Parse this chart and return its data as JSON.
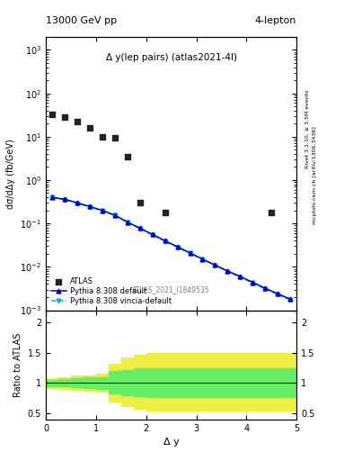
{
  "title_left": "13000 GeV pp",
  "title_right": "4-lepton",
  "annotation": "Δ y(lep pairs) (atlas2021-4l)",
  "watermark": "ATLAS_2021_I1849535",
  "right_label1": "Rivet 3.1.10, ≥ 3.5M events",
  "right_label2": "mcplots.cern.ch [arXiv:1306.3436]",
  "ylabel_main": "dσ/dΔy (fb/GeV)",
  "ylabel_ratio": "Ratio to ATLAS",
  "xlabel": "Δ y",
  "xlim": [
    0,
    5.0
  ],
  "ylim_main": [
    0.001,
    2000.0
  ],
  "ylim_ratio": [
    0.4,
    2.2
  ],
  "atlas_x": [
    0.125,
    0.375,
    0.625,
    0.875,
    1.125,
    1.375,
    1.625,
    1.875,
    2.375,
    4.5
  ],
  "atlas_y": [
    32,
    28,
    22,
    16,
    10,
    9.5,
    3.5,
    0.3,
    0.18,
    0.18
  ],
  "mc1_x": [
    0.125,
    0.375,
    0.625,
    0.875,
    1.125,
    1.375,
    1.625,
    1.875,
    2.125,
    2.375,
    2.625,
    2.875,
    3.125,
    3.375,
    3.625,
    3.875,
    4.125,
    4.375,
    4.625,
    4.875
  ],
  "mc1_y": [
    0.4,
    0.36,
    0.3,
    0.245,
    0.2,
    0.155,
    0.108,
    0.078,
    0.056,
    0.04,
    0.029,
    0.021,
    0.015,
    0.011,
    0.008,
    0.006,
    0.0044,
    0.0032,
    0.0024,
    0.0018
  ],
  "mc2_x": [
    0.125,
    0.375,
    0.625,
    0.875,
    1.125,
    1.375,
    1.625,
    1.875,
    2.125,
    2.375,
    2.625,
    2.875,
    3.125,
    3.375,
    3.625,
    3.875,
    4.125,
    4.375,
    4.625,
    4.875
  ],
  "mc2_y": [
    0.395,
    0.355,
    0.295,
    0.24,
    0.197,
    0.152,
    0.106,
    0.076,
    0.054,
    0.039,
    0.028,
    0.0205,
    0.0148,
    0.0108,
    0.0078,
    0.0058,
    0.0042,
    0.0031,
    0.0023,
    0.0017
  ],
  "ratio_x": [
    0.0,
    0.25,
    0.5,
    0.75,
    1.0,
    1.25,
    1.5,
    1.75,
    2.0,
    2.25,
    2.5,
    2.75,
    3.0,
    3.25,
    3.5,
    3.75,
    4.0,
    4.25,
    4.5,
    4.75,
    5.0
  ],
  "green_upper": [
    1.05,
    1.07,
    1.08,
    1.09,
    1.1,
    1.2,
    1.22,
    1.24,
    1.25,
    1.25,
    1.25,
    1.25,
    1.25,
    1.25,
    1.25,
    1.25,
    1.25,
    1.25,
    1.25,
    1.25,
    1.25
  ],
  "green_lower": [
    0.95,
    0.94,
    0.93,
    0.92,
    0.9,
    0.83,
    0.8,
    0.78,
    0.77,
    0.77,
    0.77,
    0.77,
    0.77,
    0.77,
    0.77,
    0.77,
    0.77,
    0.77,
    0.77,
    0.77,
    0.77
  ],
  "yellow_upper": [
    1.08,
    1.1,
    1.12,
    1.13,
    1.15,
    1.32,
    1.42,
    1.47,
    1.5,
    1.5,
    1.5,
    1.5,
    1.5,
    1.5,
    1.5,
    1.5,
    1.5,
    1.5,
    1.5,
    1.5,
    1.5
  ],
  "yellow_lower": [
    0.92,
    0.91,
    0.89,
    0.88,
    0.86,
    0.7,
    0.62,
    0.57,
    0.55,
    0.55,
    0.55,
    0.55,
    0.55,
    0.55,
    0.55,
    0.55,
    0.55,
    0.55,
    0.55,
    0.55,
    0.55
  ],
  "color_atlas": "#222222",
  "color_mc1": "#0000cc",
  "color_mc2": "#00bbcc",
  "color_green": "#66ee66",
  "color_yellow": "#eeee44",
  "legend_labels": [
    "ATLAS",
    "Pythia 8.308 default",
    "Pythia 8.308 vincia-default"
  ]
}
